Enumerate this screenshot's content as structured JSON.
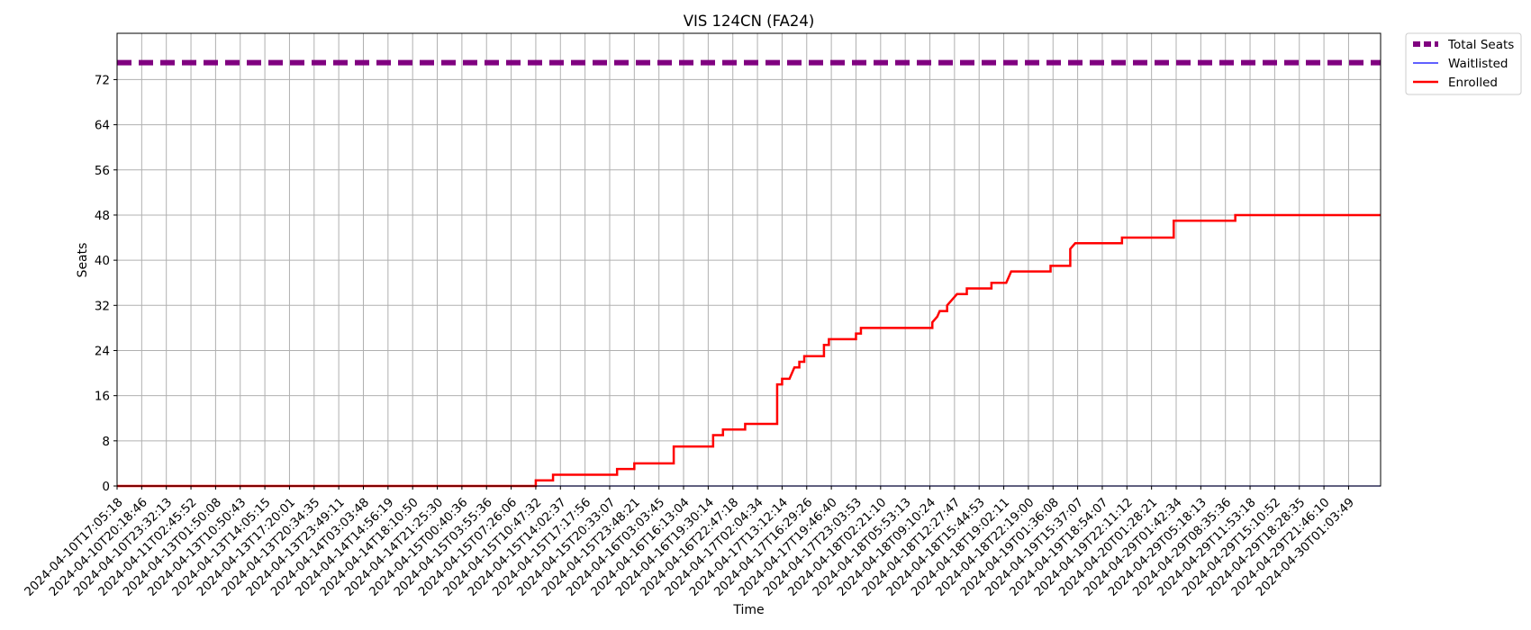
{
  "chart_data": {
    "type": "line",
    "title": "VIS 124CN (FA24)",
    "xlabel": "Time",
    "ylabel": "Seats",
    "ylim": [
      0,
      80.2
    ],
    "yticks": [
      0,
      8,
      16,
      24,
      32,
      40,
      48,
      56,
      64,
      72
    ],
    "grid": true,
    "legend_position": "outside top-right",
    "x_categories": [
      "2024-04-10T17:05:18",
      "2024-04-10T20:18:46",
      "2024-04-10T23:32:13",
      "2024-04-11T02:45:52",
      "2024-04-13T01:50:08",
      "2024-04-13T10:50:43",
      "2024-04-13T14:05:15",
      "2024-04-13T17:20:01",
      "2024-04-13T20:34:35",
      "2024-04-13T23:49:11",
      "2024-04-14T03:03:48",
      "2024-04-14T14:56:19",
      "2024-04-14T18:10:50",
      "2024-04-14T21:25:30",
      "2024-04-15T00:40:36",
      "2024-04-15T03:55:36",
      "2024-04-15T07:26:06",
      "2024-04-15T10:47:32",
      "2024-04-15T14:02:37",
      "2024-04-15T17:17:56",
      "2024-04-15T20:33:07",
      "2024-04-15T23:48:21",
      "2024-04-16T03:03:45",
      "2024-04-16T16:13:04",
      "2024-04-16T19:30:14",
      "2024-04-16T22:47:18",
      "2024-04-17T02:04:34",
      "2024-04-17T13:12:14",
      "2024-04-17T16:29:26",
      "2024-04-17T19:46:40",
      "2024-04-17T23:03:53",
      "2024-04-18T02:21:10",
      "2024-04-18T05:53:13",
      "2024-04-18T09:10:24",
      "2024-04-18T12:27:47",
      "2024-04-18T15:44:53",
      "2024-04-18T19:02:11",
      "2024-04-18T22:19:00",
      "2024-04-19T01:36:08",
      "2024-04-19T15:37:07",
      "2024-04-19T18:54:07",
      "2024-04-19T22:11:12",
      "2024-04-20T01:28:21",
      "2024-04-29T01:42:34",
      "2024-04-29T05:18:13",
      "2024-04-29T08:35:36",
      "2024-04-29T11:53:18",
      "2024-04-29T15:10:52",
      "2024-04-29T18:28:35",
      "2024-04-29T21:46:10",
      "2024-04-30T01:03:49"
    ],
    "x_range_index": [
      0,
      51.3
    ],
    "series": [
      {
        "name": "Total Seats",
        "color": "#800080",
        "style": "dashed",
        "values": [
          [
            0,
            75
          ],
          [
            51.3,
            75
          ]
        ]
      },
      {
        "name": "Waitlisted",
        "color": "#0000ff",
        "style": "solid",
        "values": [
          [
            0,
            0
          ],
          [
            51.3,
            0
          ]
        ]
      },
      {
        "name": "Enrolled",
        "color": "#ff0000",
        "style": "step",
        "values": [
          [
            0,
            0
          ],
          [
            17,
            0
          ],
          [
            17,
            1
          ],
          [
            17.7,
            1
          ],
          [
            17.7,
            2
          ],
          [
            20.3,
            2
          ],
          [
            20.3,
            3
          ],
          [
            21,
            3
          ],
          [
            21,
            4
          ],
          [
            22.6,
            4
          ],
          [
            22.6,
            7
          ],
          [
            24.2,
            7
          ],
          [
            24.2,
            9
          ],
          [
            24.6,
            9
          ],
          [
            24.6,
            10
          ],
          [
            25.5,
            10
          ],
          [
            25.5,
            11
          ],
          [
            26.8,
            11
          ],
          [
            26.8,
            18
          ],
          [
            27,
            18
          ],
          [
            27,
            19
          ],
          [
            27.3,
            19
          ],
          [
            27.5,
            21
          ],
          [
            27.7,
            21
          ],
          [
            27.7,
            22
          ],
          [
            27.9,
            22
          ],
          [
            27.9,
            23
          ],
          [
            28.7,
            23
          ],
          [
            28.7,
            25
          ],
          [
            28.9,
            25
          ],
          [
            28.9,
            26
          ],
          [
            30,
            26
          ],
          [
            30,
            27
          ],
          [
            30.2,
            27
          ],
          [
            30.2,
            28
          ],
          [
            33.1,
            28
          ],
          [
            33.1,
            29
          ],
          [
            33.3,
            30
          ],
          [
            33.4,
            31
          ],
          [
            33.7,
            31
          ],
          [
            33.7,
            32
          ],
          [
            33.9,
            33
          ],
          [
            34.1,
            34
          ],
          [
            34.5,
            34
          ],
          [
            34.5,
            35
          ],
          [
            35.5,
            35
          ],
          [
            35.5,
            36
          ],
          [
            36.1,
            36
          ],
          [
            36.2,
            37
          ],
          [
            36.3,
            38
          ],
          [
            37.9,
            38
          ],
          [
            37.9,
            39
          ],
          [
            38.7,
            39
          ],
          [
            38.7,
            42
          ],
          [
            38.9,
            43
          ],
          [
            40.8,
            43
          ],
          [
            40.8,
            44
          ],
          [
            42.9,
            44
          ],
          [
            42.9,
            47
          ],
          [
            45.4,
            47
          ],
          [
            45.4,
            48
          ],
          [
            51.3,
            48
          ]
        ]
      }
    ]
  }
}
